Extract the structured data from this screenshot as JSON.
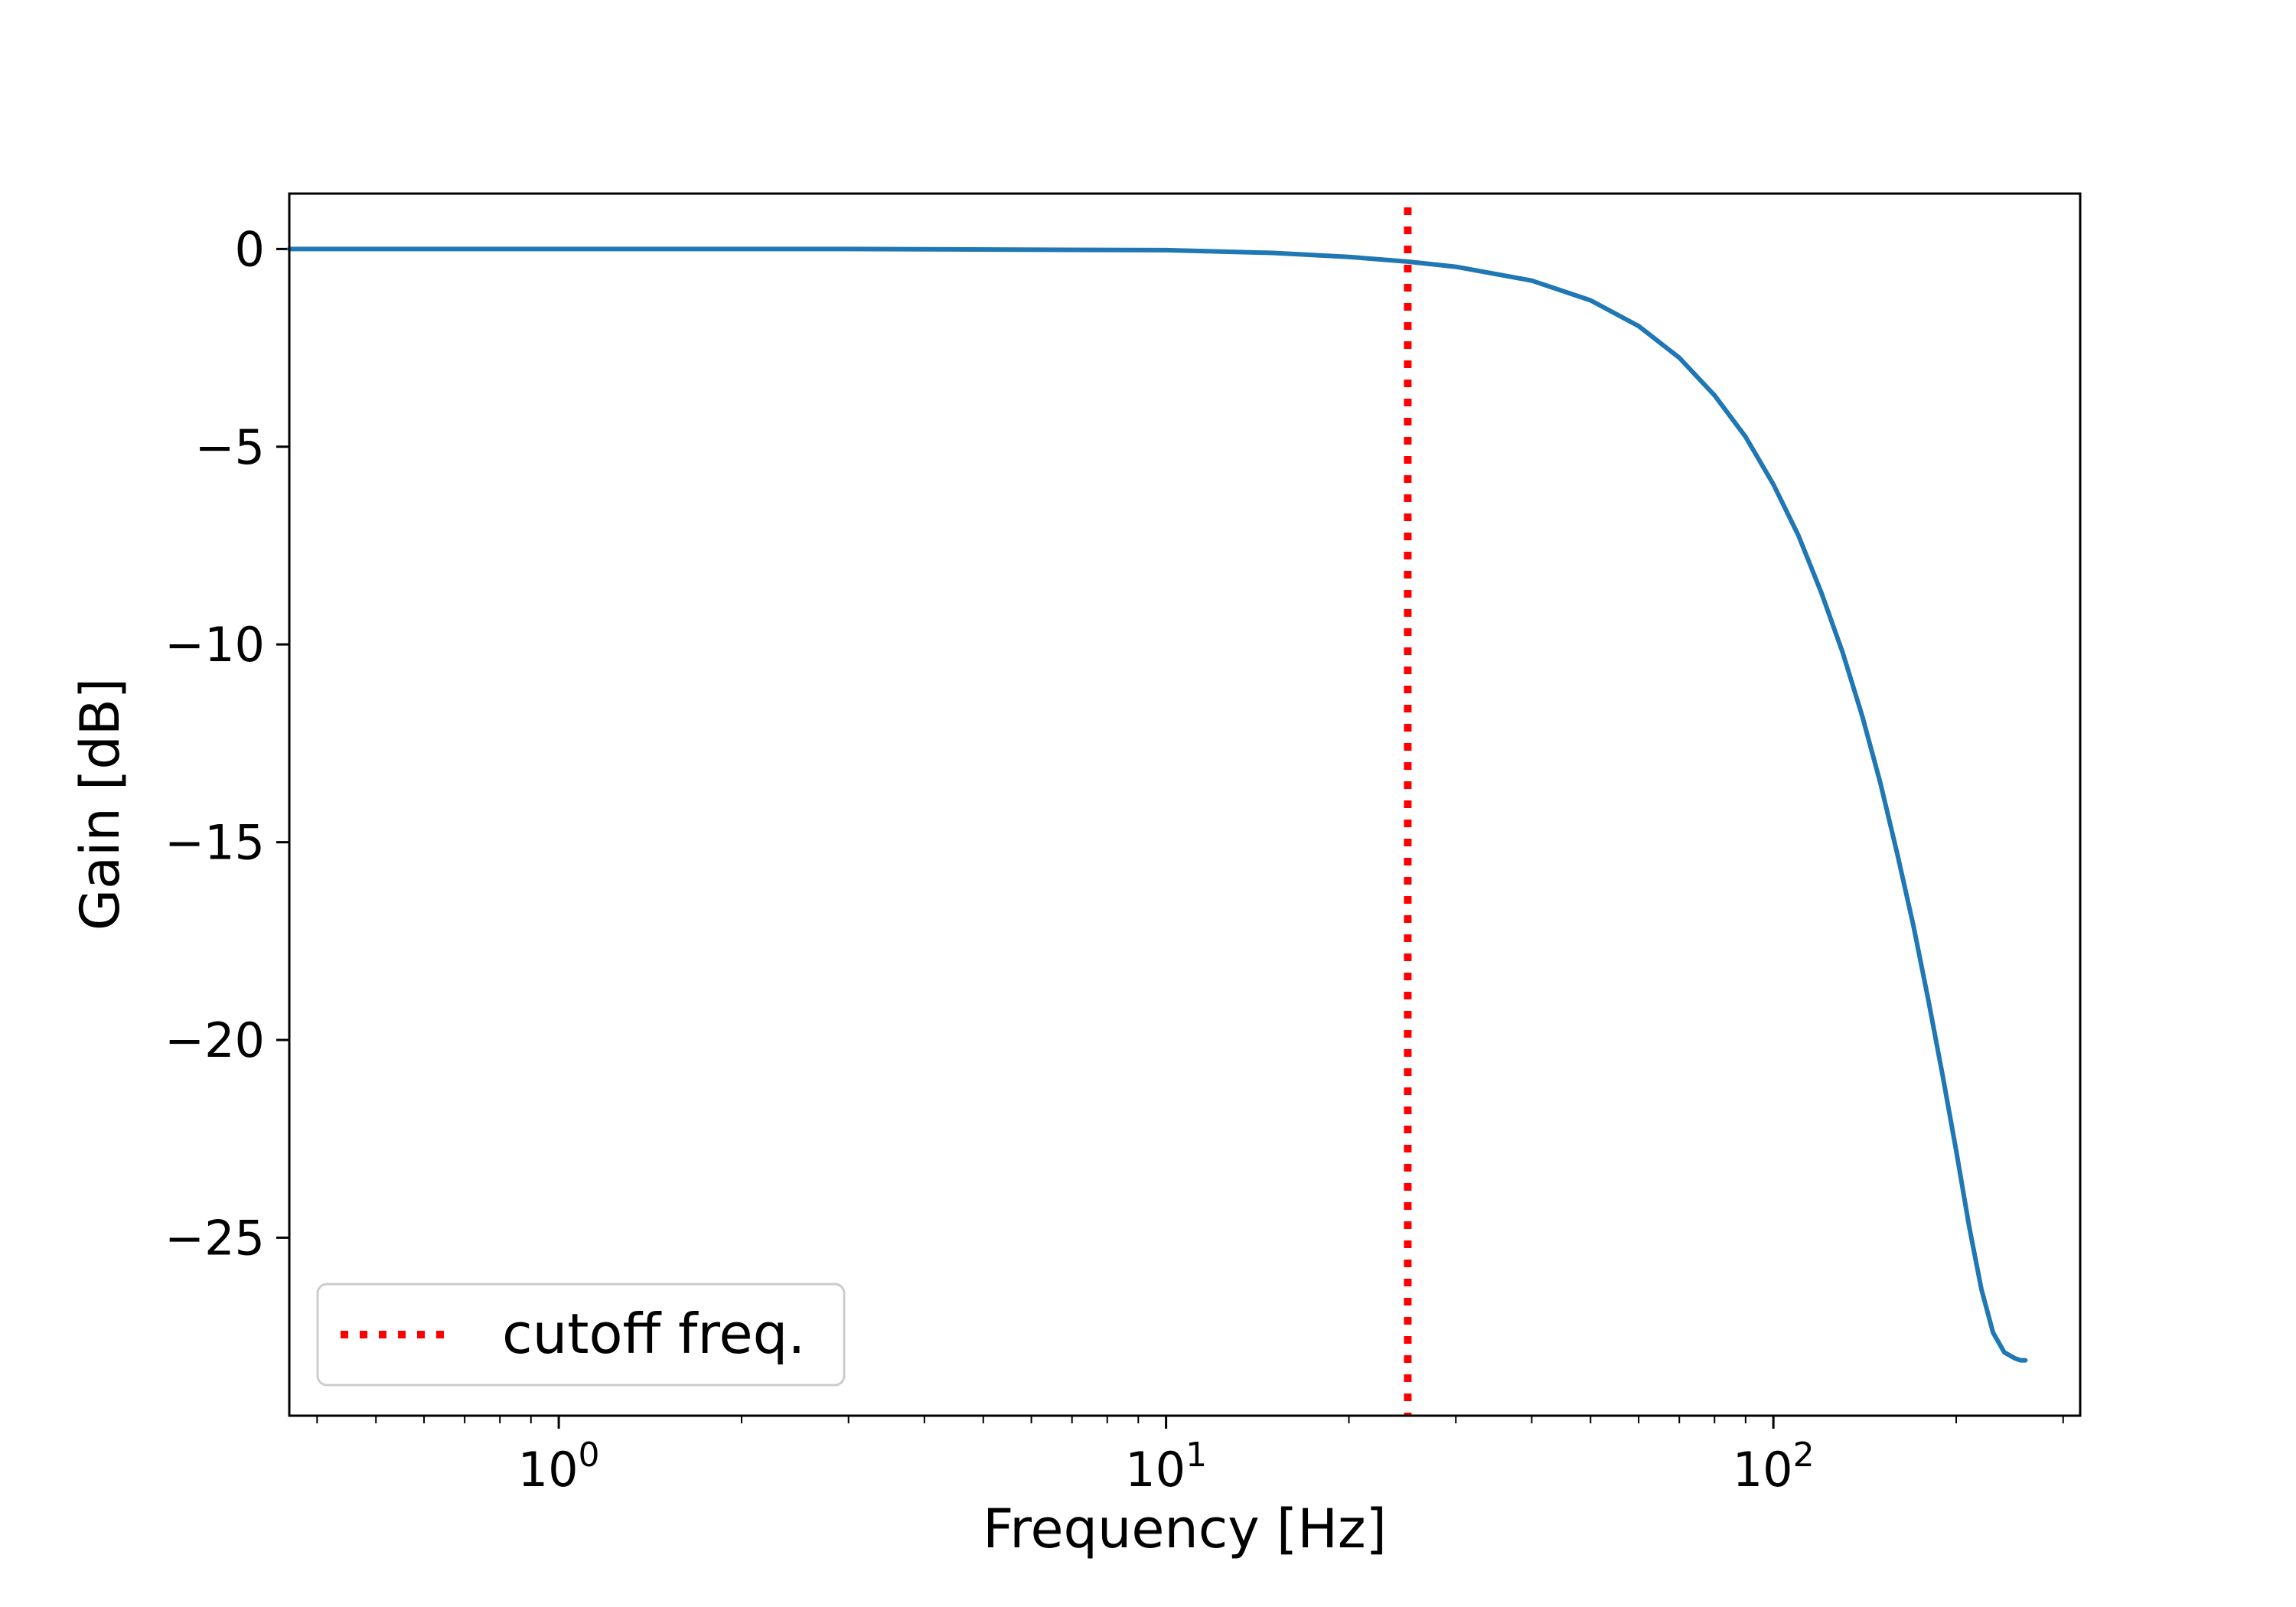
{
  "chart_data": {
    "type": "line",
    "title": "",
    "xlabel": "Frequency [Hz]",
    "ylabel": "Gain [dB]",
    "xscale": "log",
    "xlim": [
      0.36,
      320
    ],
    "ylim": [
      -29.5,
      1.4
    ],
    "xticks": [
      {
        "value": 1,
        "base": "10",
        "exp": "0"
      },
      {
        "value": 10,
        "base": "10",
        "exp": "1"
      },
      {
        "value": 100,
        "base": "10",
        "exp": "2"
      }
    ],
    "yticks": [
      {
        "value": 0,
        "label": "0"
      },
      {
        "value": -5,
        "label": "−5"
      },
      {
        "value": -10,
        "label": "−10"
      },
      {
        "value": -15,
        "label": "−15"
      },
      {
        "value": -20,
        "label": "−20"
      },
      {
        "value": -25,
        "label": "−25"
      }
    ],
    "grid": false,
    "legend_position": "lower-left",
    "series": [
      {
        "color": "#1f77b4",
        "x": [
          0.36,
          1,
          3,
          10,
          15,
          20,
          25,
          30,
          40,
          50,
          60,
          70,
          80,
          90,
          100,
          110,
          120,
          130,
          140,
          150,
          160,
          170,
          180,
          190,
          200,
          210,
          220,
          230,
          240,
          250,
          255,
          260
        ],
        "y": [
          0,
          0,
          0,
          -0.03,
          -0.1,
          -0.2,
          -0.32,
          -0.45,
          -0.8,
          -1.3,
          -1.95,
          -2.75,
          -3.7,
          -4.75,
          -5.95,
          -7.25,
          -8.7,
          -10.2,
          -11.8,
          -13.5,
          -15.3,
          -17.1,
          -19.0,
          -20.9,
          -22.8,
          -24.7,
          -26.3,
          -27.4,
          -27.9,
          -28.05,
          -28.1,
          -28.1
        ]
      }
    ],
    "annotations": [
      {
        "type": "vline",
        "x": 25,
        "label": "cutoff freq.",
        "color": "#ff0000",
        "style": "dotted"
      }
    ]
  }
}
